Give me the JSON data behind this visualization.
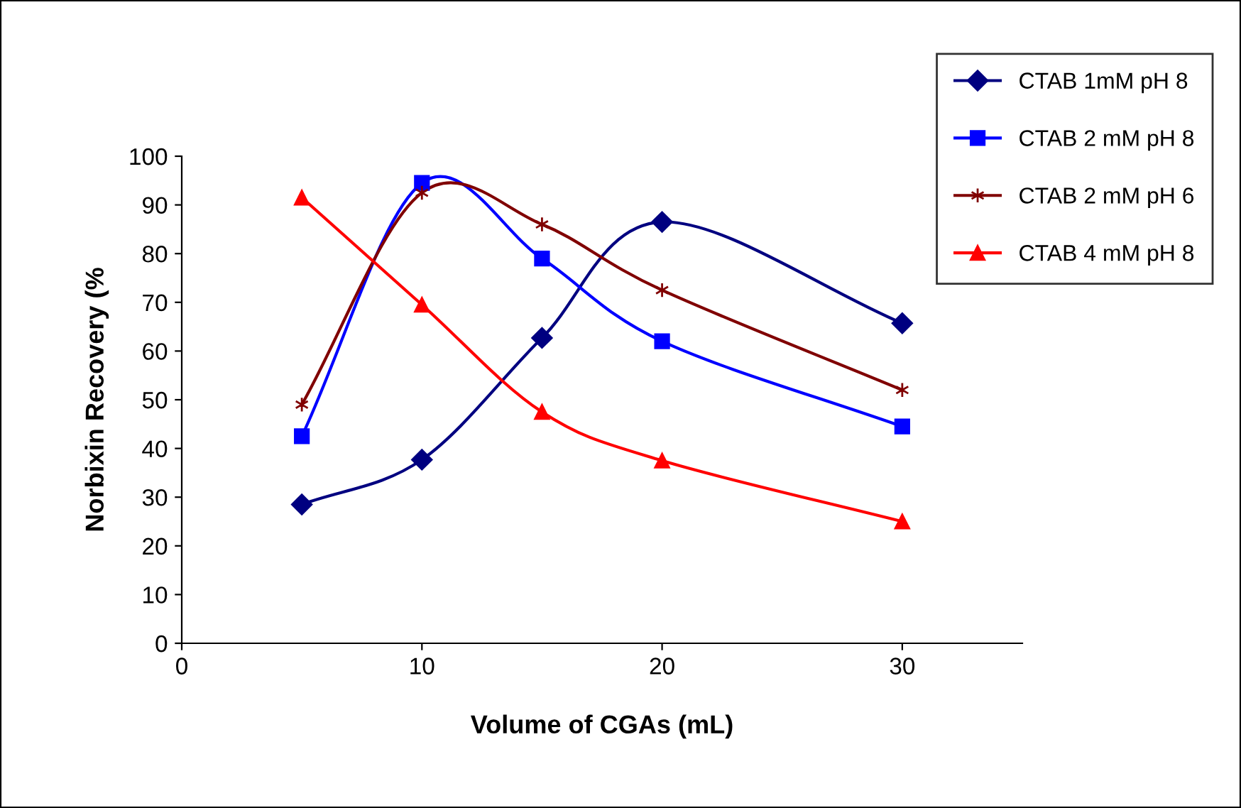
{
  "chart_data": {
    "type": "line",
    "xlabel": "Volume of CGAs (mL)",
    "ylabel": "Norbixin Recovery (%",
    "x": [
      5,
      10,
      15,
      20,
      30
    ],
    "series": [
      {
        "name": "CTAB 1mM pH 8",
        "color": "#000080",
        "marker": "diamond",
        "values": [
          28.5,
          37.7,
          62.7,
          86.5,
          65.7
        ]
      },
      {
        "name": "CTAB 2 mM pH 8",
        "color": "#0000ff",
        "marker": "square",
        "values": [
          42.5,
          94.5,
          79,
          62,
          44.5
        ]
      },
      {
        "name": "CTAB 2 mM pH 6",
        "color": "#800000",
        "marker": "cross",
        "values": [
          49,
          92.5,
          86,
          72.5,
          52
        ]
      },
      {
        "name": "CTAB 4 mM pH 8",
        "color": "#ff0000",
        "marker": "triangle",
        "values": [
          91.5,
          69.5,
          47.5,
          37.5,
          25
        ]
      }
    ],
    "xlim": [
      0,
      35
    ],
    "xticks": [
      0,
      10,
      20,
      30
    ],
    "ylim": [
      0,
      100
    ],
    "yticks": [
      0,
      10,
      20,
      30,
      40,
      50,
      60,
      70,
      80,
      90,
      100
    ],
    "grid": false,
    "legend": "top right",
    "line_style": "solid"
  }
}
